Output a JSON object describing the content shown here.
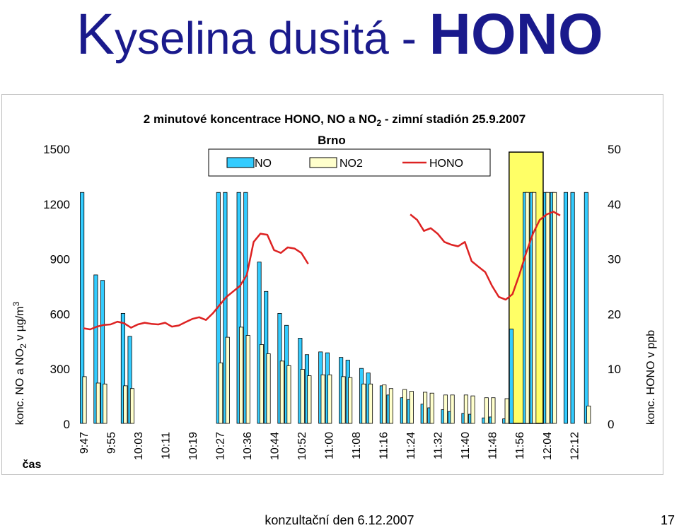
{
  "slide": {
    "title_k": "K",
    "title_rest": "yselina dusitá - ",
    "title_hono": "HONO",
    "footer": "konzultační den 6.12.2007",
    "page_number": "17"
  },
  "chart_data": {
    "type": "bar",
    "title_line1_a": "2 minutové koncentrace HONO, NO a NO",
    "title_line1_sub": "2",
    "title_line1_b": " - zimní stadión 25.9.2007",
    "title_line2": "Brno",
    "ylabel_main": "konc. NO a NO",
    "ylabel_sub": "2",
    "ylabel_rest": " v µg/m",
    "ylabel_sup": "3",
    "y2label": "konc. HONO v ppb",
    "xlabel": "čas",
    "ylim": [
      0,
      1500
    ],
    "y2lim": [
      0,
      50
    ],
    "yticks": [
      0,
      300,
      600,
      900,
      1200,
      1500
    ],
    "y2ticks": [
      0,
      10,
      20,
      30,
      40,
      50
    ],
    "legend_position": "top-center",
    "highlight_region": {
      "from_index": 63,
      "to_index": 67,
      "color": "#ffff66"
    },
    "x_tick_labels": [
      "9:47",
      "9:55",
      "10:03",
      "10:11",
      "10:19",
      "10:27",
      "10:36",
      "10:44",
      "10:52",
      "11:00",
      "11:08",
      "11:16",
      "11:24",
      "11:32",
      "11:40",
      "11:48",
      "11:56",
      "12:04",
      "12:12"
    ],
    "x_tick_every": 4,
    "colors": {
      "NO": "#33ccff",
      "NO2": "#ffffcc",
      "HONO": "#dd2222"
    },
    "series": [
      {
        "name": "NO",
        "kind": "bar",
        "values": [
          1260,
          null,
          810,
          780,
          null,
          null,
          600,
          475,
          null,
          null,
          null,
          null,
          null,
          null,
          null,
          null,
          null,
          null,
          null,
          null,
          1260,
          1260,
          null,
          1260,
          1260,
          null,
          880,
          720,
          null,
          600,
          535,
          null,
          465,
          375,
          null,
          390,
          385,
          null,
          360,
          345,
          null,
          300,
          275,
          null,
          205,
          155,
          null,
          140,
          130,
          null,
          105,
          85,
          null,
          75,
          65,
          null,
          55,
          50,
          null,
          30,
          35,
          null,
          25,
          515,
          null,
          1260,
          1260,
          null,
          1260,
          1260,
          null,
          1260,
          1260,
          null,
          1260,
          null
        ]
      },
      {
        "name": "NO2",
        "kind": "bar",
        "values": [
          255,
          null,
          220,
          215,
          null,
          null,
          205,
          190,
          null,
          null,
          null,
          null,
          null,
          null,
          null,
          null,
          null,
          null,
          null,
          null,
          330,
          470,
          null,
          525,
          480,
          null,
          430,
          380,
          null,
          340,
          315,
          null,
          295,
          260,
          null,
          265,
          265,
          null,
          255,
          250,
          null,
          215,
          215,
          null,
          210,
          190,
          null,
          185,
          175,
          null,
          170,
          165,
          null,
          155,
          155,
          null,
          155,
          150,
          null,
          140,
          140,
          null,
          135,
          null,
          null,
          1260,
          1260,
          null,
          1260,
          1260,
          null,
          null,
          null,
          null,
          95,
          null
        ]
      },
      {
        "name": "HONO",
        "kind": "line",
        "values": [
          17.3,
          17.1,
          17.6,
          17.9,
          18.0,
          18.5,
          18.2,
          17.4,
          18.0,
          18.3,
          18.1,
          18.0,
          18.3,
          17.6,
          17.8,
          18.4,
          19.0,
          19.3,
          18.8,
          20.0,
          21.5,
          23.0,
          24.0,
          25.0,
          27.0,
          33.0,
          34.5,
          34.3,
          31.5,
          31.0,
          32.0,
          31.8,
          31.0,
          29.0,
          null,
          null,
          null,
          null,
          null,
          null,
          null,
          null,
          null,
          null,
          null,
          null,
          null,
          null,
          38.0,
          37.0,
          35.0,
          35.5,
          34.5,
          33.0,
          32.5,
          32.2,
          33.0,
          29.5,
          28.5,
          27.5,
          25.0,
          23.0,
          22.5,
          23.5,
          27.0,
          31.0,
          34.5,
          37.0,
          38.0,
          38.5,
          37.8,
          null,
          null,
          null,
          null,
          null
        ]
      }
    ]
  }
}
